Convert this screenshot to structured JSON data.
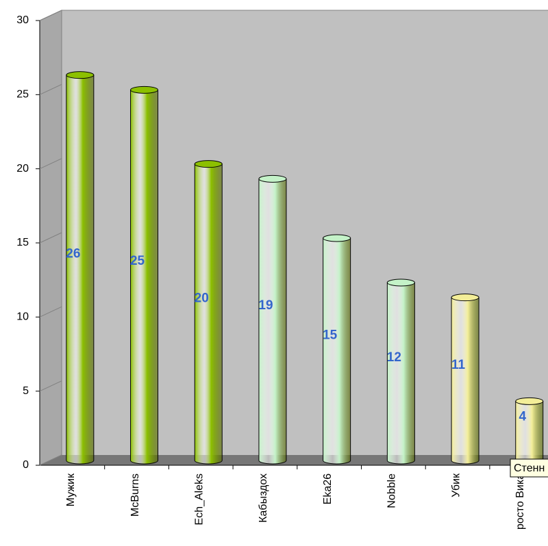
{
  "chart_data": {
    "type": "bar",
    "categories": [
      "Мужик",
      "McBurns",
      "Ech_Aleks",
      "Кабыздох",
      "Eka26",
      "Nobble",
      "Убик",
      "росто Вика"
    ],
    "values": [
      26,
      25,
      20,
      19,
      15,
      12,
      11,
      4
    ],
    "colors": [
      "#8cc000",
      "#8cc000",
      "#8cc000",
      "#c4f2c8",
      "#c4f2c8",
      "#c4f2c8",
      "#f3ee98",
      "#f3ee98"
    ],
    "ylim": [
      0,
      30
    ],
    "yticks": [
      0,
      5,
      10,
      15,
      20,
      25,
      30
    ],
    "annotation": "Стенн"
  }
}
